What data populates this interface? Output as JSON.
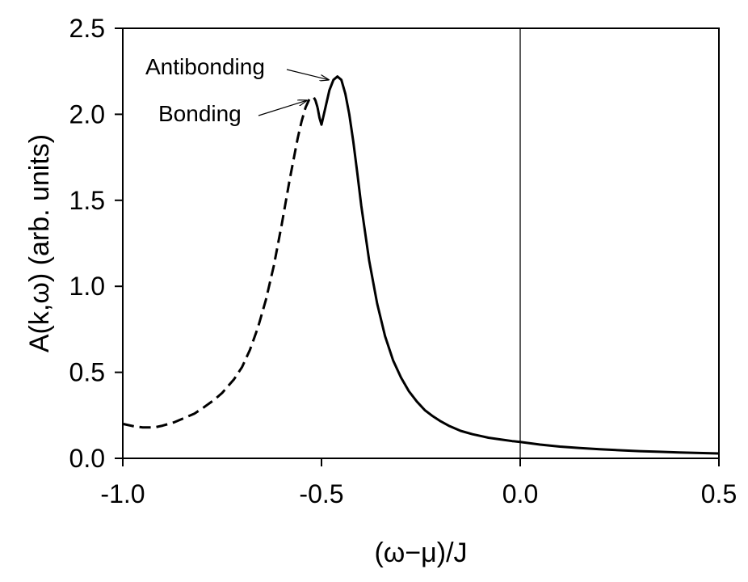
{
  "chart_data": {
    "type": "line",
    "xlabel": "(ω−μ)/J",
    "ylabel": "A(k,ω) (arb. units)",
    "xlim": [
      -1.0,
      0.5
    ],
    "ylim": [
      0.0,
      2.5
    ],
    "x_ticks": [
      "-1.0",
      "-0.5",
      "0.0",
      "0.5"
    ],
    "y_ticks": [
      "0.0",
      "0.5",
      "1.0",
      "1.5",
      "2.0",
      "2.5"
    ],
    "grid": false,
    "legend": "none",
    "vertical_reference_line_x": 0.0,
    "series": [
      {
        "style": "dashed",
        "color": "#000000",
        "x": [
          -1.0,
          -0.97,
          -0.95,
          -0.92,
          -0.9,
          -0.87,
          -0.85,
          -0.82,
          -0.8,
          -0.77,
          -0.75,
          -0.72,
          -0.7,
          -0.68,
          -0.66,
          -0.64,
          -0.62,
          -0.6,
          -0.58,
          -0.56,
          -0.55,
          -0.54,
          -0.53,
          -0.52,
          -0.515,
          -0.51
        ],
        "y": [
          0.2,
          0.185,
          0.18,
          0.18,
          0.19,
          0.21,
          0.23,
          0.26,
          0.29,
          0.34,
          0.38,
          0.46,
          0.53,
          0.63,
          0.76,
          0.92,
          1.12,
          1.36,
          1.62,
          1.86,
          1.96,
          2.04,
          2.09,
          2.1,
          2.08,
          2.04
        ]
      },
      {
        "style": "solid",
        "color": "#000000",
        "x": [
          -0.51,
          -0.505,
          -0.5,
          -0.49,
          -0.48,
          -0.47,
          -0.46,
          -0.45,
          -0.44,
          -0.43,
          -0.42,
          -0.41,
          -0.4,
          -0.38,
          -0.36,
          -0.34,
          -0.32,
          -0.3,
          -0.28,
          -0.26,
          -0.24,
          -0.22,
          -0.2,
          -0.18,
          -0.15,
          -0.12,
          -0.1,
          -0.08,
          -0.05,
          -0.02,
          0.0,
          0.05,
          0.1,
          0.15,
          0.2,
          0.25,
          0.3,
          0.35,
          0.4,
          0.45,
          0.5
        ],
        "y": [
          2.04,
          1.98,
          1.94,
          2.04,
          2.14,
          2.2,
          2.22,
          2.2,
          2.12,
          2.0,
          1.84,
          1.66,
          1.47,
          1.15,
          0.9,
          0.71,
          0.57,
          0.47,
          0.39,
          0.33,
          0.28,
          0.245,
          0.215,
          0.19,
          0.16,
          0.14,
          0.13,
          0.12,
          0.11,
          0.1,
          0.095,
          0.08,
          0.068,
          0.06,
          0.053,
          0.047,
          0.042,
          0.038,
          0.034,
          0.031,
          0.028
        ]
      }
    ],
    "annotations": [
      {
        "text": "Antibonding",
        "target": [
          -0.47,
          2.21
        ]
      },
      {
        "text": "Bonding",
        "target": [
          -0.525,
          2.09
        ]
      }
    ]
  }
}
